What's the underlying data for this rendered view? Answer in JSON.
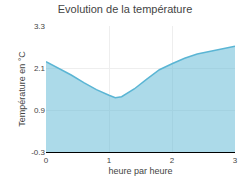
{
  "chart_data": {
    "type": "area",
    "title": "Evolution de la température",
    "xlabel": "heure par heure",
    "ylabel": "Température en °C",
    "x": [
      0,
      0.2,
      0.4,
      0.6,
      0.8,
      1.0,
      1.1,
      1.2,
      1.4,
      1.6,
      1.8,
      2.0,
      2.2,
      2.4,
      2.6,
      2.8,
      3.0
    ],
    "values": [
      2.28,
      2.1,
      1.9,
      1.68,
      1.48,
      1.32,
      1.25,
      1.28,
      1.5,
      1.78,
      2.05,
      2.22,
      2.38,
      2.5,
      2.58,
      2.65,
      2.72
    ],
    "color": "#5ab5d4",
    "xlim": [
      0,
      3
    ],
    "ylim": [
      -0.3,
      3.3
    ],
    "xticks": [
      0,
      1,
      2,
      3
    ],
    "yticks": [
      -0.3,
      0.9,
      2.1,
      3.3
    ],
    "grid": true
  }
}
